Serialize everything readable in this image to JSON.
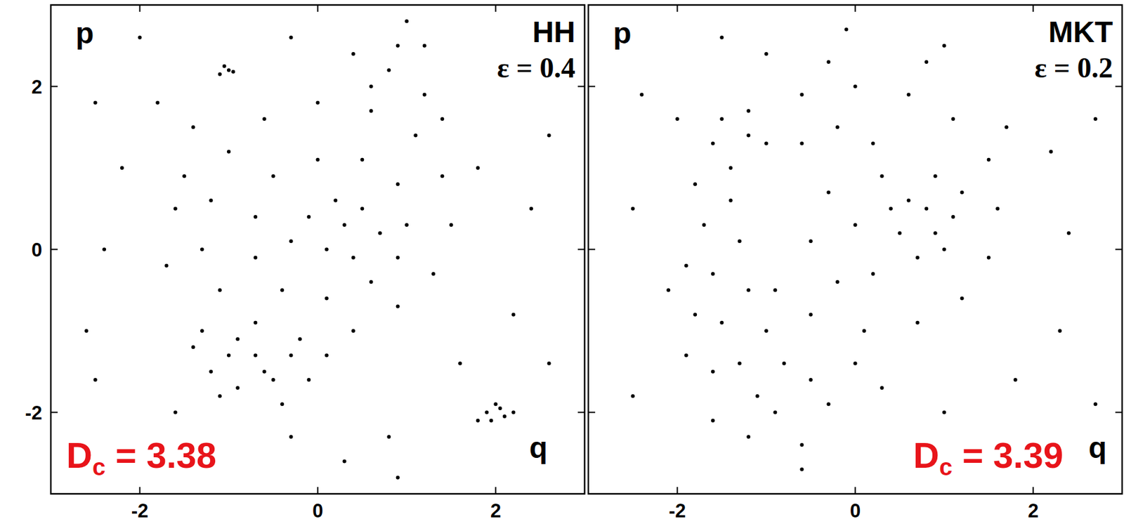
{
  "chart_data": [
    {
      "type": "scatter",
      "title": "HH",
      "subtitle": "ε = 0.4",
      "x_label": "q",
      "y_label": "p",
      "annotations": [
        {
          "base": "D",
          "sub": "c",
          "text": " = 3.38",
          "color": "#e8141a"
        }
      ],
      "xlim": [
        -3,
        3
      ],
      "ylim": [
        -3,
        3
      ],
      "xticks": [
        -2,
        0,
        2
      ],
      "yticks": [
        -2,
        0,
        2
      ],
      "series": [
        {
          "color": "#000000",
          "marker": "dot",
          "x": [
            1.5,
            1.4,
            1.1,
            0.6,
            0,
            -0.6,
            -1.0,
            -1.2,
            -1.3,
            -1.1,
            -0.7,
            -0.2,
            0.4,
            0.9,
            1.3,
            1.0,
            0.9,
            0.5,
            0,
            -0.5,
            -0.7,
            -0.7,
            -0.4,
            0.1,
            0.6,
            0.9,
            0.3,
            0.5,
            0.1,
            -0.1,
            0.4,
            0.2,
            -0.3,
            0.7,
            -1.4,
            -1.2,
            -0.9,
            -0.5,
            -0.3,
            -0.7,
            -1.0,
            -0.6,
            -1.1,
            -0.4,
            -0.1,
            0.1,
            -1.3,
            -0.9,
            0.8,
            0.9,
            1.0,
            0.6,
            1.2,
            1.4,
            -1.6,
            -1.7,
            -1.5,
            -1.4,
            -1.8,
            -2.2,
            -2.4,
            -1.0,
            -1.05,
            -0.95,
            -1.1,
            1.9,
            2.0,
            2.1,
            1.95,
            2.05,
            1.8,
            2.2,
            1.8,
            2.4,
            2.2,
            1.6,
            0.8,
            0.3,
            -0.3,
            -2.5,
            -2.6,
            -2.5,
            -0.3,
            0.4,
            2.6,
            2.6,
            0.9,
            -1.6,
            -2.0,
            1.2
          ],
          "values": [
            0.3,
            0.9,
            1.4,
            1.7,
            1.8,
            1.6,
            1.2,
            0.6,
            0.0,
            -0.5,
            -0.9,
            -1.1,
            -1.0,
            -0.7,
            -0.3,
            0.3,
            0.8,
            1.1,
            1.1,
            0.9,
            0.4,
            -0.1,
            -0.5,
            -0.6,
            -0.4,
            -0.1,
            0.3,
            0.5,
            0.0,
            0.4,
            -0.1,
            0.6,
            0.1,
            0.2,
            -1.2,
            -1.5,
            -1.7,
            -1.6,
            -1.3,
            -1.3,
            -1.3,
            -1.5,
            -1.8,
            -1.9,
            -1.6,
            -1.3,
            -1.0,
            -1.1,
            2.2,
            2.5,
            2.8,
            2.0,
            1.9,
            1.6,
            0.5,
            -0.2,
            0.9,
            1.5,
            1.8,
            1.0,
            0.0,
            2.2,
            2.25,
            2.18,
            2.15,
            -2.0,
            -1.9,
            -2.05,
            -2.1,
            -1.95,
            -2.1,
            -2.0,
            1.0,
            0.5,
            -0.8,
            -1.4,
            -2.3,
            -2.6,
            -2.3,
            -1.6,
            -1.0,
            1.8,
            2.6,
            2.4,
            1.4,
            -1.4,
            -2.8,
            -2.0,
            2.6,
            2.5
          ]
        }
      ]
    },
    {
      "type": "scatter",
      "title": "MKT",
      "subtitle": "ε = 0.2",
      "x_label": "q",
      "y_label": "p",
      "annotations": [
        {
          "base": "D",
          "sub": "c",
          "text": " = 3.39",
          "color": "#e8141a"
        }
      ],
      "xlim": [
        -3,
        3
      ],
      "ylim": [
        -3,
        3
      ],
      "xticks": [
        -2,
        0,
        2
      ],
      "yticks": [
        -2,
        0,
        2
      ],
      "tick_labels": "x",
      "series": [
        {
          "color": "#000000",
          "marker": "dot",
          "x": [
            -1.8,
            -1.6,
            -1.2,
            -0.6,
            0,
            0.6,
            1.1,
            1.5,
            1.6,
            1.5,
            1.2,
            0.7,
            0.1,
            -0.5,
            -0.9,
            -1.7,
            -1.6,
            -1.5,
            -1.3,
            -1.1,
            -1.4,
            -1.3,
            -1.2,
            -1.0,
            -1.9,
            -1.8,
            -1.6,
            -1.4,
            -1.0,
            -1.2,
            -1.5,
            0.8,
            0.9,
            0.7,
            1.1,
            0.6,
            1.0,
            0.5,
            1.2,
            0.9,
            0.0,
            -0.3,
            0.3,
            -0.5,
            0.2,
            -0.2,
            0.4,
            0.2,
            -0.6,
            -0.2,
            -0.8,
            -0.5,
            -0.3,
            -0.9,
            -1.2,
            -0.6,
            0.0,
            0.3,
            -1.6,
            -1.9,
            -2.1,
            0.8,
            1.0,
            -0.3,
            -1.0,
            1.7,
            -2.0,
            2.2,
            2.4,
            2.3,
            1.8,
            1.0,
            -0.6,
            -2.4,
            -2.5,
            -2.5,
            2.7,
            2.7,
            -0.1,
            -1.5
          ],
          "values": [
            0.8,
            1.3,
            1.7,
            1.9,
            2.0,
            1.9,
            1.6,
            1.1,
            0.5,
            -0.1,
            -0.6,
            -0.9,
            -1.0,
            -0.8,
            -0.5,
            0.3,
            -0.3,
            -0.9,
            -1.4,
            -1.8,
            0.6,
            0.1,
            -0.5,
            -1.0,
            -0.2,
            -0.8,
            -1.5,
            1.0,
            1.3,
            1.4,
            1.6,
            0.5,
            0.2,
            -0.1,
            0.4,
            0.6,
            0.0,
            0.2,
            0.7,
            0.9,
            0.3,
            0.7,
            0.9,
            0.1,
            -0.3,
            -0.4,
            0.5,
            1.3,
            1.3,
            1.5,
            -1.4,
            -1.6,
            -1.9,
            -2.0,
            -2.3,
            -2.4,
            -1.4,
            -1.7,
            -2.1,
            -1.3,
            -0.5,
            2.3,
            2.5,
            2.3,
            2.4,
            1.5,
            1.6,
            1.2,
            0.2,
            -1.0,
            -1.6,
            -2.0,
            -2.7,
            1.9,
            0.5,
            -1.8,
            1.6,
            -1.9,
            2.7,
            2.6
          ]
        }
      ]
    }
  ]
}
